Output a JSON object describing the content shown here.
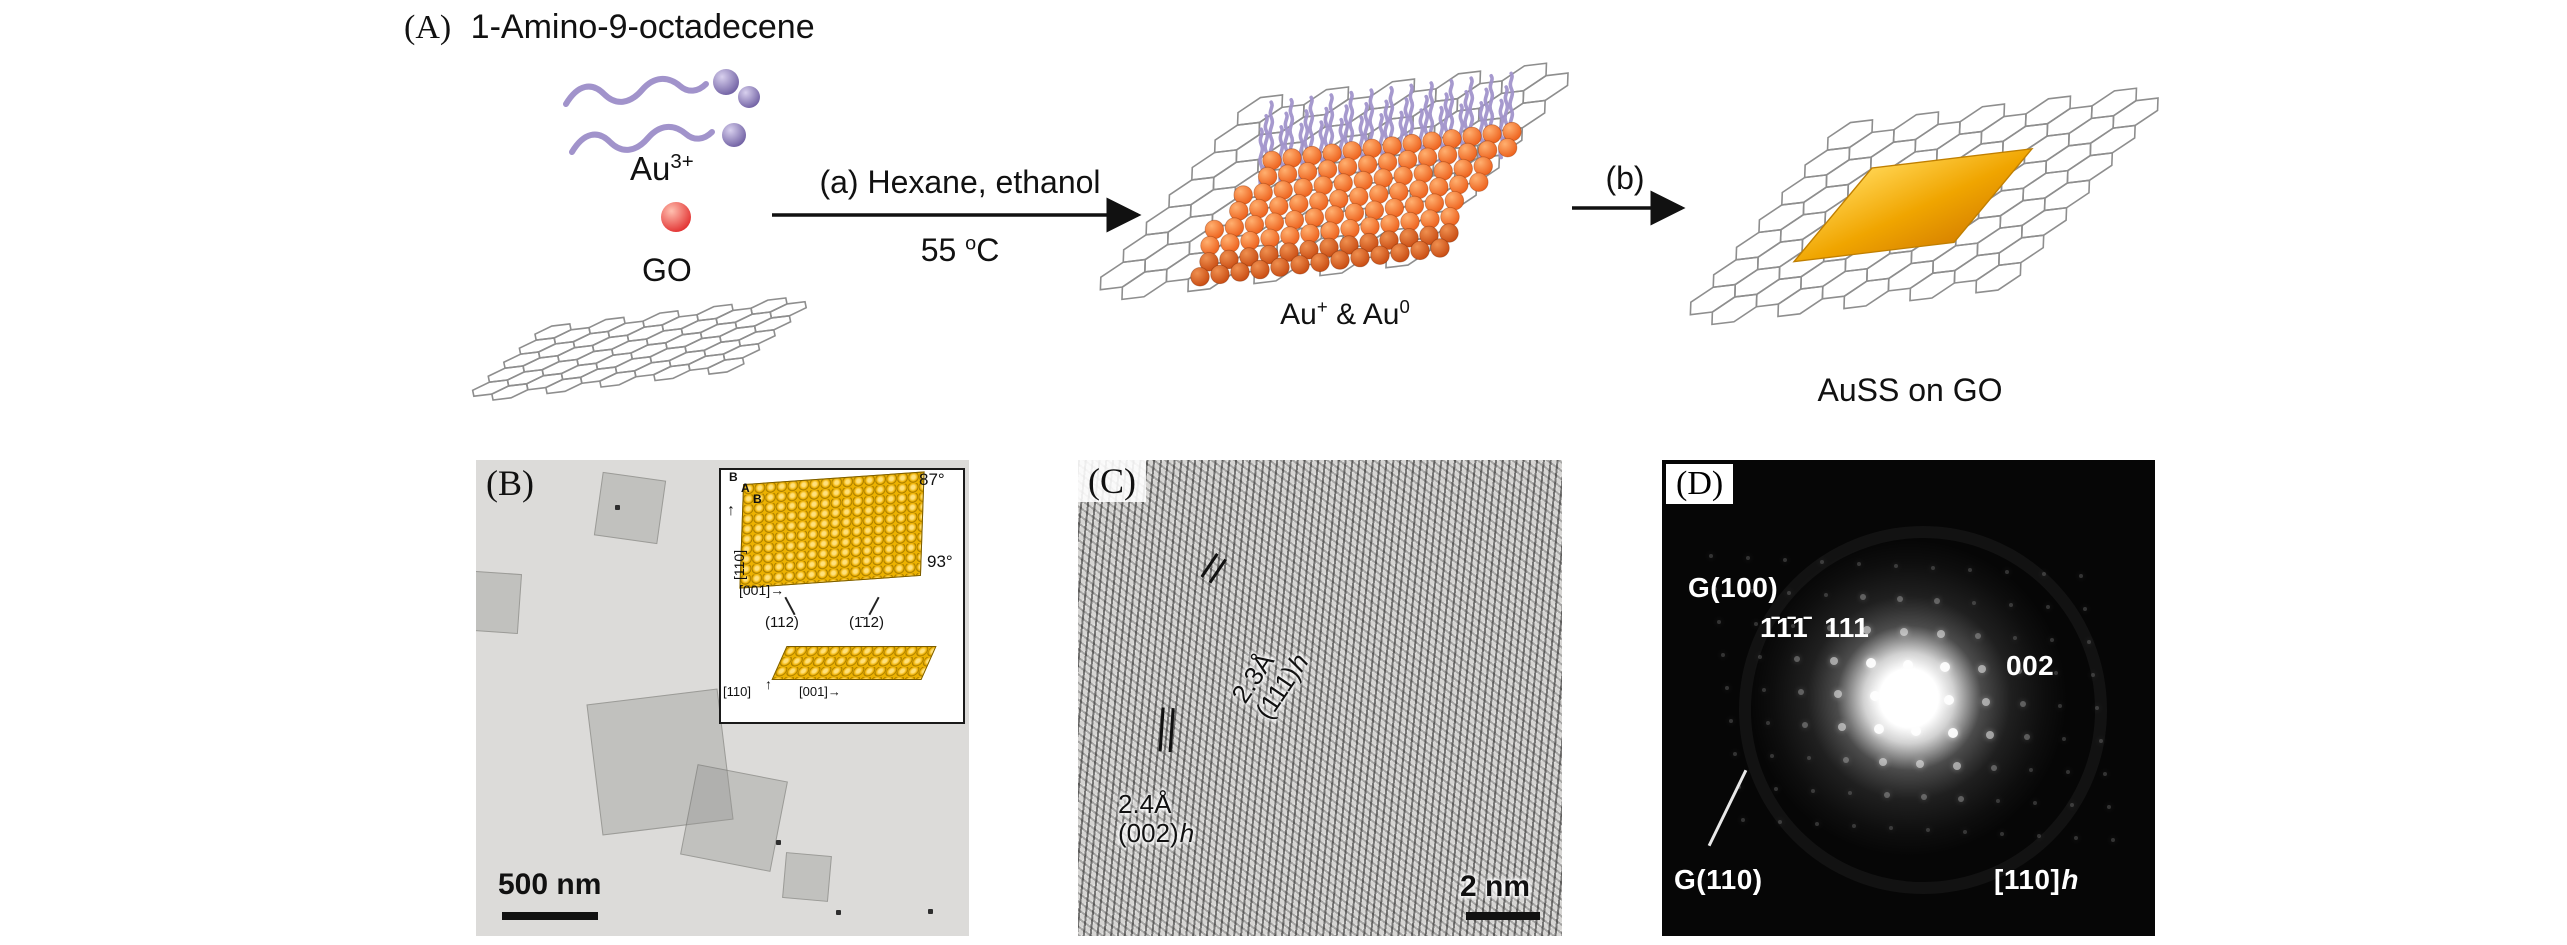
{
  "figure": {
    "panel_a_label": "(A)",
    "panel_b_label": "(B)",
    "panel_c_label": "(C)",
    "panel_d_label": "(D)"
  },
  "panel_a": {
    "title": "1-Amino-9-octadecene",
    "ion": {
      "base": "Au",
      "sup": "3+"
    },
    "go": "GO",
    "step_a": "(a) Hexane, ethanol",
    "temp": {
      "base": "55 ",
      "sup": "o",
      "unit": "C"
    },
    "step_b": "(b)",
    "intermediate": {
      "base1": "Au",
      "sup1": "+",
      "joiner": " & ",
      "base2": "Au",
      "sup2": "0"
    },
    "product": "AuSS on GO"
  },
  "panel_b": {
    "scale_bar": "500 nm",
    "inset": {
      "angle_top": "87°",
      "angle_side": "93°",
      "stacking": [
        "B",
        "A",
        "B"
      ],
      "top_axis_v": "[110]",
      "top_axis_h": "[001]",
      "facet_left": "(112)",
      "facet_right": "(1̄12)",
      "side_axis_v": "[110]",
      "side_axis_h": "[001]",
      "arrow_up": "↑",
      "arrow_right": "→"
    }
  },
  "panel_c": {
    "annotation_1": {
      "spacing": "2.3Å",
      "plane": "(111)",
      "phase": "h"
    },
    "annotation_2": {
      "spacing": "2.4Å",
      "plane": "(002)",
      "phase": "h"
    },
    "scale_bar": "2 nm"
  },
  "panel_d": {
    "graphene_spot_1": "G(100)",
    "reflections_neg": "1̄1̄1̄",
    "reflections_pos": "111",
    "reflection_002": "002",
    "graphene_spot_2": "G(110)",
    "zone_axis": {
      "base": "[110]",
      "phase": "h"
    }
  },
  "colors": {
    "gold": "#f0a500",
    "au_orange": "#ed5f1a",
    "ligand_purple": "#a193cb",
    "go_red": "#e23030",
    "graphene_gray": "#8e8e8e"
  }
}
